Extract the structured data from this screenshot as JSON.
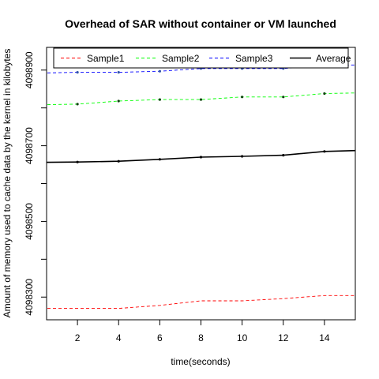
{
  "chart_data": {
    "type": "line",
    "title": "Overhead of SAR without container or VM launched",
    "xlabel": "time(seconds)",
    "ylabel": "Amount of memory used to cache data by the kernel in kilobytes",
    "xlim": [
      0.5,
      15.5
    ],
    "ylim": [
      4098240,
      4098960
    ],
    "x_ticks": [
      2,
      4,
      6,
      8,
      10,
      12,
      14
    ],
    "y_ticks_labeled": [
      4098300,
      4098500,
      4098700,
      4098900
    ],
    "y_ticks_minor": [
      4098400,
      4098600,
      4098800
    ],
    "legend_position": "top",
    "x": [
      0,
      2,
      4,
      6,
      8,
      10,
      12,
      14,
      16
    ],
    "series": [
      {
        "name": "Sample1",
        "color": "#ff0000",
        "style": "dashed",
        "markers": false,
        "values": [
          4098270,
          4098270,
          4098270,
          4098278,
          4098290,
          4098290,
          4098296,
          4098304,
          4098304
        ]
      },
      {
        "name": "Sample2",
        "color": "#00ff00",
        "style": "dashed",
        "markers": true,
        "values": [
          4098808,
          4098810,
          4098818,
          4098822,
          4098822,
          4098829,
          4098829,
          4098838,
          4098840
        ]
      },
      {
        "name": "Sample3",
        "color": "#0000ff",
        "style": "dashed",
        "markers": true,
        "values": [
          4098892,
          4098894,
          4098894,
          4098897,
          4098904,
          4098904,
          4098904,
          4098912,
          4098914
        ]
      },
      {
        "name": "Average",
        "color": "#000000",
        "style": "solid",
        "markers": true,
        "values": [
          4098656,
          4098657,
          4098659,
          4098664,
          4098670,
          4098672,
          4098675,
          4098685,
          4098688
        ]
      }
    ]
  }
}
